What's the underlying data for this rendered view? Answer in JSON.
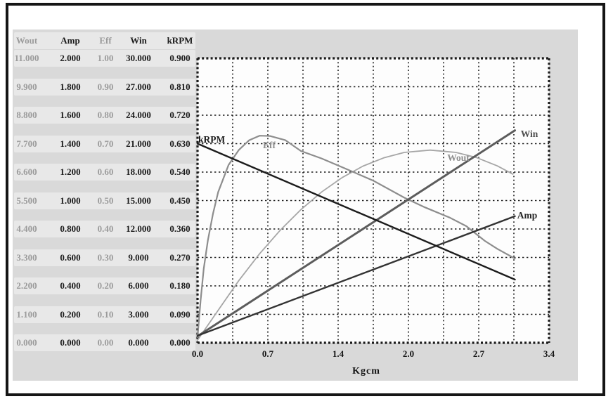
{
  "page": {
    "background": "#ffffff",
    "frame_color": "#151515",
    "panel_color": "#d9d9d9",
    "plot_background": "#fdfdfd",
    "grid_color": "#1a1a1a"
  },
  "table": {
    "headers": [
      "Wout",
      "Amp",
      "Eff",
      "Win",
      "kRPM"
    ],
    "muted_columns": [
      true,
      false,
      true,
      false,
      false
    ],
    "muted_color": "#9b9b9b",
    "text_color": "#1b1b1b",
    "rows": [
      [
        "11.000",
        "2.000",
        "1.00",
        "30.000",
        "0.900"
      ],
      [
        "9.900",
        "1.800",
        "0.90",
        "27.000",
        "0.810"
      ],
      [
        "8.800",
        "1.600",
        "0.80",
        "24.000",
        "0.720"
      ],
      [
        "7.700",
        "1.400",
        "0.70",
        "21.000",
        "0.630"
      ],
      [
        "6.600",
        "1.200",
        "0.60",
        "18.000",
        "0.540"
      ],
      [
        "5.500",
        "1.000",
        "0.50",
        "15.000",
        "0.450"
      ],
      [
        "4.400",
        "0.800",
        "0.40",
        "12.000",
        "0.360"
      ],
      [
        "3.300",
        "0.600",
        "0.30",
        "9.000",
        "0.270"
      ],
      [
        "2.200",
        "0.400",
        "0.20",
        "6.000",
        "0.180"
      ],
      [
        "1.100",
        "0.200",
        "0.10",
        "3.000",
        "0.090"
      ],
      [
        "0.000",
        "0.000",
        "0.00",
        "0.000",
        "0.000"
      ]
    ]
  },
  "chart_data": {
    "type": "line",
    "xlabel": "Kgcm",
    "x_range": [
      0,
      3.4
    ],
    "x_tick_labels": [
      "0.0",
      "0.7",
      "1.4",
      "2.0",
      "2.7",
      "3.4"
    ],
    "grid": {
      "columns": 10,
      "rows": 10,
      "style": "dotted"
    },
    "series": [
      {
        "name": "Wout",
        "label": "Wout",
        "axis_max": 11,
        "color": "#a6a6a6",
        "label_color": "#8d8d8d",
        "width": 1.8,
        "points": [
          [
            0,
            0.1
          ],
          [
            0.2,
            1.26
          ],
          [
            0.4,
            2.41
          ],
          [
            0.6,
            3.44
          ],
          [
            0.8,
            4.35
          ],
          [
            1.0,
            5.15
          ],
          [
            1.2,
            5.83
          ],
          [
            1.4,
            6.39
          ],
          [
            1.6,
            6.83
          ],
          [
            1.8,
            7.15
          ],
          [
            2.0,
            7.36
          ],
          [
            2.25,
            7.45
          ],
          [
            2.5,
            7.36
          ],
          [
            2.7,
            7.16
          ],
          [
            2.9,
            6.84
          ],
          [
            3.05,
            6.52
          ]
        ]
      },
      {
        "name": "Eff",
        "label": "Eff",
        "axis_max": 1,
        "color": "#8d8d8d",
        "label_color": "#8d8d8d",
        "width": 2.2,
        "points": [
          [
            0,
            0.02
          ],
          [
            0.03,
            0.15
          ],
          [
            0.06,
            0.26
          ],
          [
            0.1,
            0.36
          ],
          [
            0.15,
            0.455
          ],
          [
            0.2,
            0.53
          ],
          [
            0.3,
            0.625
          ],
          [
            0.4,
            0.678
          ],
          [
            0.5,
            0.712
          ],
          [
            0.6,
            0.728
          ],
          [
            0.7,
            0.727
          ],
          [
            0.85,
            0.712
          ],
          [
            1.0,
            0.674
          ],
          [
            1.2,
            0.648
          ],
          [
            1.4,
            0.617
          ],
          [
            1.7,
            0.57
          ],
          [
            2.0,
            0.51
          ],
          [
            2.2,
            0.476
          ],
          [
            2.44,
            0.44
          ],
          [
            2.6,
            0.41
          ],
          [
            2.78,
            0.358
          ],
          [
            2.9,
            0.33
          ],
          [
            3.07,
            0.296
          ]
        ]
      },
      {
        "name": "Win",
        "label": "Win",
        "axis_max": 30,
        "color": "#5c5c5c",
        "label_color": "#4d4d4d",
        "width": 3,
        "points": [
          [
            0,
            0.7
          ],
          [
            3.07,
            22.4
          ]
        ]
      },
      {
        "name": "Amp",
        "label": "Amp",
        "axis_max": 2,
        "color": "#333333",
        "label_color": "#262626",
        "width": 2.4,
        "points": [
          [
            0,
            0.05
          ],
          [
            3.07,
            0.89
          ]
        ]
      },
      {
        "name": "kRPM",
        "label": "kRPM",
        "axis_max": 0.9,
        "color": "#1c1c1c",
        "label_color": "#1a1a1a",
        "width": 2.4,
        "points": [
          [
            0,
            0.63
          ],
          [
            3.07,
            0.2
          ]
        ]
      }
    ]
  }
}
